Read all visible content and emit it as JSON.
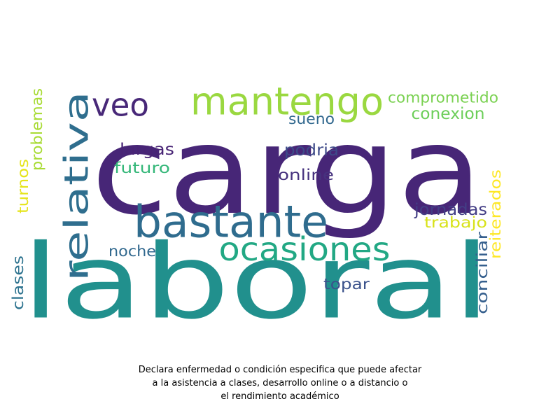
{
  "wordcloud": {
    "words": [
      {
        "text": "carga",
        "color": "#472677"
      },
      {
        "text": "laboral",
        "color": "#21908d"
      },
      {
        "text": "relativa",
        "color": "#2f6e8e"
      },
      {
        "text": "mantengo",
        "color": "#9ad840"
      },
      {
        "text": "bastante",
        "color": "#2f6c8e"
      },
      {
        "text": "veo",
        "color": "#482878"
      },
      {
        "text": "ocasiones",
        "color": "#22a884"
      },
      {
        "text": "comprometido",
        "color": "#7ad151"
      },
      {
        "text": "conexion",
        "color": "#6cce59"
      },
      {
        "text": "sueno",
        "color": "#31688e"
      },
      {
        "text": "largas",
        "color": "#482475"
      },
      {
        "text": "podria",
        "color": "#3e4a89"
      },
      {
        "text": "futuro",
        "color": "#35b779"
      },
      {
        "text": "online",
        "color": "#46327e"
      },
      {
        "text": "jornadas",
        "color": "#433e85"
      },
      {
        "text": "trabajo",
        "color": "#d8e219"
      },
      {
        "text": "noche",
        "color": "#31688e"
      },
      {
        "text": "topar",
        "color": "#3b528b"
      },
      {
        "text": "conciliar",
        "color": "#355f8d"
      },
      {
        "text": "reiterados",
        "color": "#fde725"
      },
      {
        "text": "problemas",
        "color": "#a8db34"
      },
      {
        "text": "turnos",
        "color": "#e5e419"
      },
      {
        "text": "clases",
        "color": "#2c728e"
      }
    ]
  },
  "caption": {
    "line1": "Declara enfermedad o condición especifica que puede afectar",
    "line2": "a la asistencia a clases, desarrollo online o a distancio o",
    "line3": "el rendimiento académico"
  }
}
